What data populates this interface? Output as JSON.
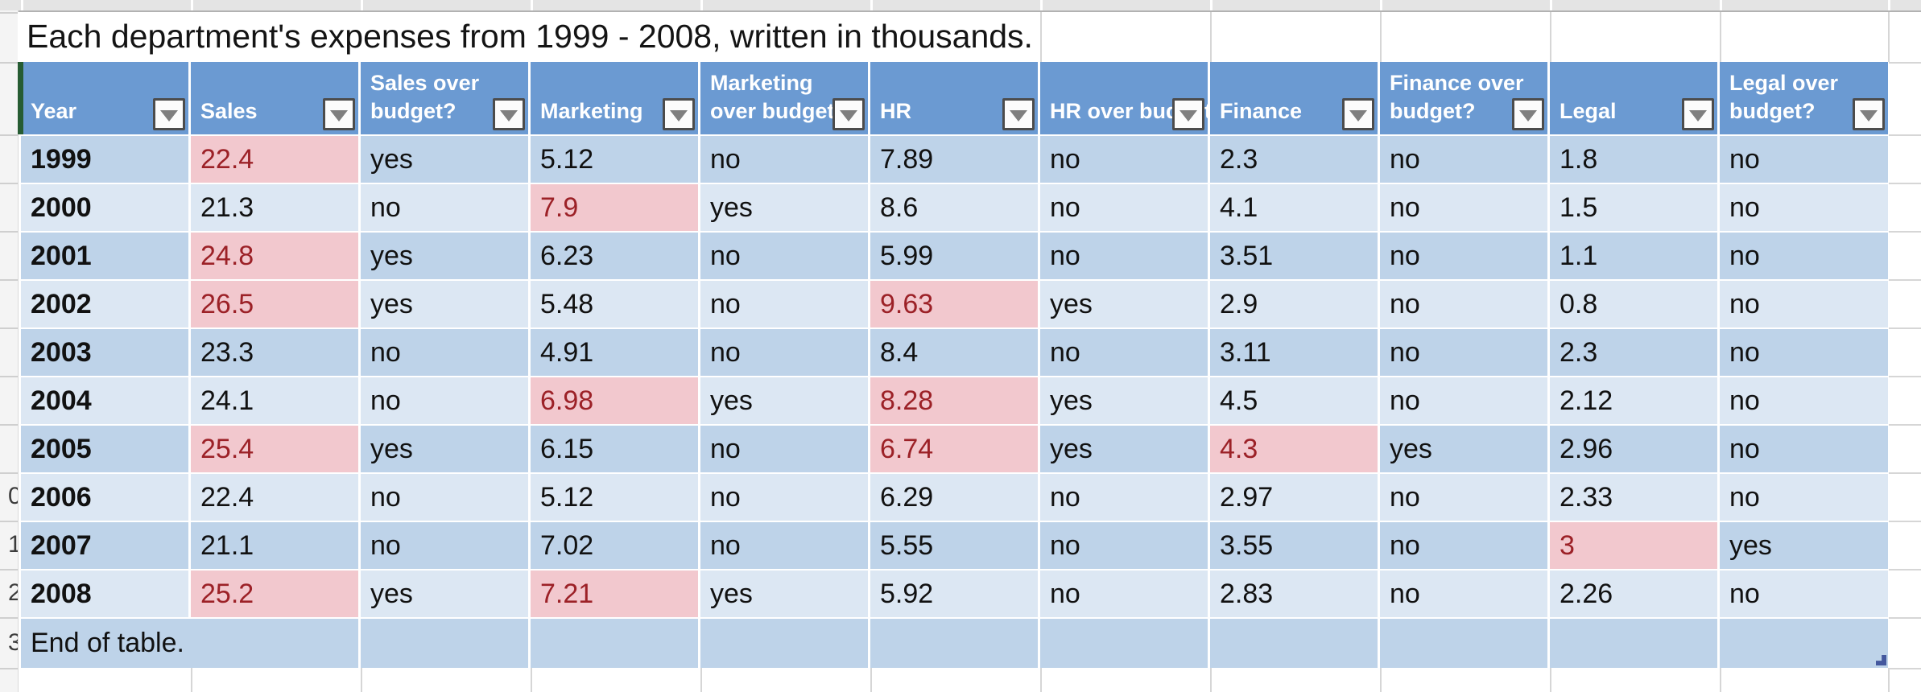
{
  "title": "Each department's expenses from 1999 - 2008, written in thousands.",
  "icons": {
    "filter_dropdown": "filter-dropdown-icon",
    "table_resize_handle": "table-resize-handle"
  },
  "colors": {
    "header_fill": "#6b9ad2",
    "header_text": "#ffffff",
    "band_dark": "#bed3e9",
    "band_light": "#dce7f3",
    "flag_fill": "#f2c8ce",
    "flag_text": "#9c2127",
    "table_left_bar": "#265c33",
    "resize_handle": "#44589e"
  },
  "row_number_fragments": [
    "0",
    "1",
    "2",
    "3"
  ],
  "chart_data": {
    "type": "table",
    "title": "Each department's expenses from 1999 - 2008, written in thousands."
  },
  "table": {
    "columns": [
      {
        "label": "Year"
      },
      {
        "label": "Sales"
      },
      {
        "label": "Sales over budget?"
      },
      {
        "label": "Marketing"
      },
      {
        "label": "Marketing over budget?"
      },
      {
        "label": "HR"
      },
      {
        "label": "HR over budget?"
      },
      {
        "label": "Finance"
      },
      {
        "label": "Finance over budget?"
      },
      {
        "label": "Legal"
      },
      {
        "label": "Legal over budget?"
      }
    ],
    "rows": [
      {
        "values": [
          "1999",
          "22.4",
          "yes",
          "5.12",
          "no",
          "7.89",
          "no",
          "2.3",
          "no",
          "1.8",
          "no"
        ],
        "flagged_columns": [
          1
        ]
      },
      {
        "values": [
          "2000",
          "21.3",
          "no",
          "7.9",
          "yes",
          "8.6",
          "no",
          "4.1",
          "no",
          "1.5",
          "no"
        ],
        "flagged_columns": [
          3
        ]
      },
      {
        "values": [
          "2001",
          "24.8",
          "yes",
          "6.23",
          "no",
          "5.99",
          "no",
          "3.51",
          "no",
          "1.1",
          "no"
        ],
        "flagged_columns": [
          1
        ]
      },
      {
        "values": [
          "2002",
          "26.5",
          "yes",
          "5.48",
          "no",
          "9.63",
          "yes",
          "2.9",
          "no",
          "0.8",
          "no"
        ],
        "flagged_columns": [
          1,
          5
        ]
      },
      {
        "values": [
          "2003",
          "23.3",
          "no",
          "4.91",
          "no",
          "8.4",
          "no",
          "3.11",
          "no",
          "2.3",
          "no"
        ],
        "flagged_columns": []
      },
      {
        "values": [
          "2004",
          "24.1",
          "no",
          "6.98",
          "yes",
          "8.28",
          "yes",
          "4.5",
          "no",
          "2.12",
          "no"
        ],
        "flagged_columns": [
          3,
          5
        ]
      },
      {
        "values": [
          "2005",
          "25.4",
          "yes",
          "6.15",
          "no",
          "6.74",
          "yes",
          "4.3",
          "yes",
          "2.96",
          "no"
        ],
        "flagged_columns": [
          1,
          5,
          7
        ]
      },
      {
        "values": [
          "2006",
          "22.4",
          "no",
          "5.12",
          "no",
          "6.29",
          "no",
          "2.97",
          "no",
          "2.33",
          "no"
        ],
        "flagged_columns": []
      },
      {
        "values": [
          "2007",
          "21.1",
          "no",
          "7.02",
          "no",
          "5.55",
          "no",
          "3.55",
          "no",
          "3",
          "yes"
        ],
        "flagged_columns": [
          9
        ]
      },
      {
        "values": [
          "2008",
          "25.2",
          "yes",
          "7.21",
          "yes",
          "5.92",
          "no",
          "2.83",
          "no",
          "2.26",
          "no"
        ],
        "flagged_columns": [
          1,
          3
        ]
      }
    ],
    "footer": {
      "label": "End of table."
    }
  }
}
